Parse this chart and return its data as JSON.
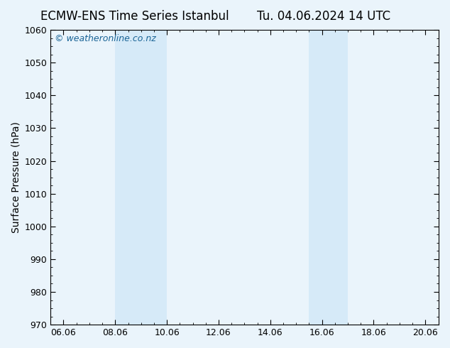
{
  "title_left": "ECMW-ENS Time Series Istanbul",
  "title_right": "Tu. 04.06.2024 14 UTC",
  "ylabel": "Surface Pressure (hPa)",
  "ylim": [
    970,
    1060
  ],
  "yticks": [
    970,
    980,
    990,
    1000,
    1010,
    1020,
    1030,
    1040,
    1050,
    1060
  ],
  "xlim_start": 5.5,
  "xlim_end": 20.5,
  "xtick_labels": [
    "06.06",
    "08.06",
    "10.06",
    "12.06",
    "14.06",
    "16.06",
    "18.06",
    "20.06"
  ],
  "xtick_positions": [
    6.0,
    8.0,
    10.0,
    12.0,
    14.0,
    16.0,
    18.0,
    20.0
  ],
  "shaded_bands": [
    {
      "x_start": 8.0,
      "x_end": 10.0
    },
    {
      "x_start": 15.5,
      "x_end": 17.0
    }
  ],
  "shaded_color": "#d6eaf8",
  "background_color": "#eaf4fb",
  "plot_bg_color": "#eaf4fb",
  "watermark_text": "© weatheronline.co.nz",
  "watermark_color": "#1a6496",
  "title_fontsize": 12,
  "axis_label_fontsize": 10,
  "tick_fontsize": 9,
  "watermark_fontsize": 9
}
